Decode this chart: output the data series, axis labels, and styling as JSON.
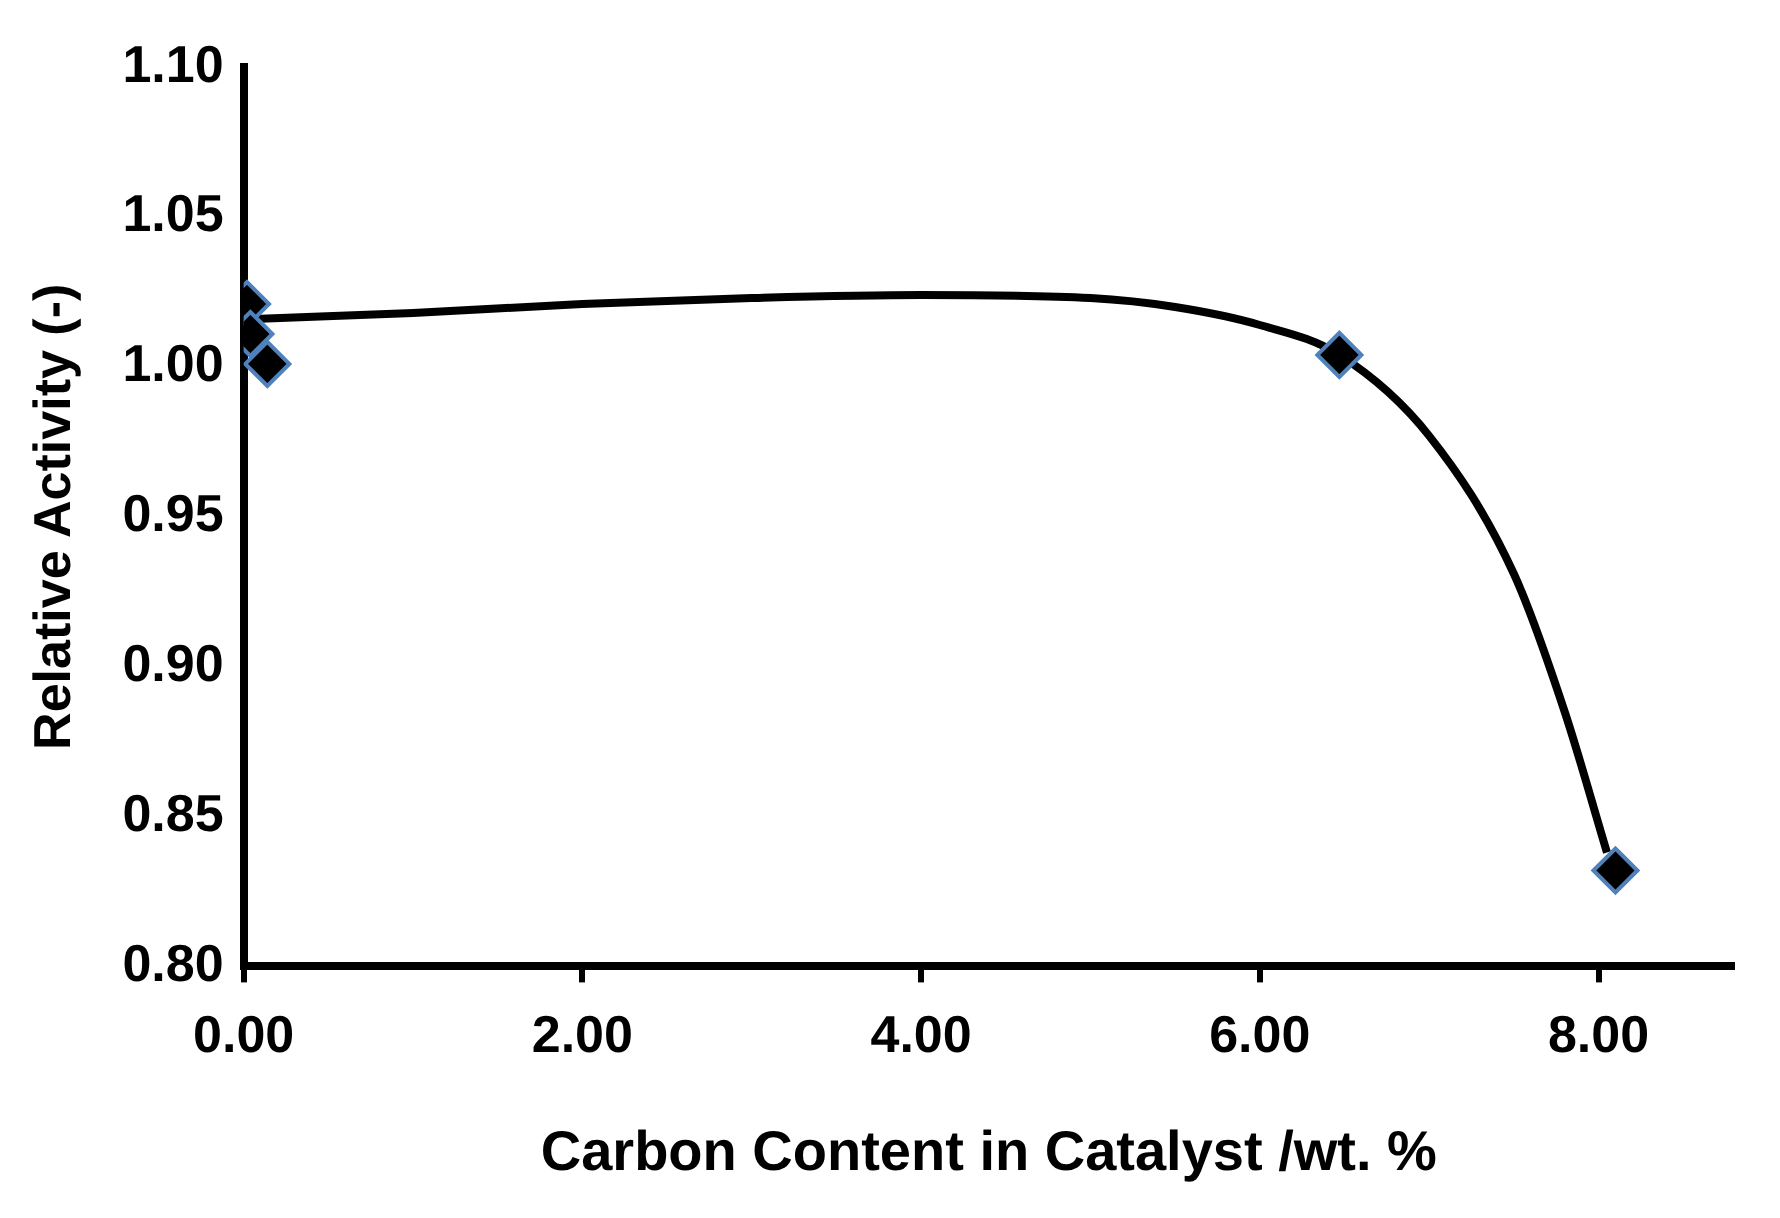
{
  "chart_data": {
    "type": "scatter",
    "xlabel": "Carbon Content in Catalyst /wt. %",
    "ylabel": "Relative Activity (-)",
    "xlim": [
      0,
      8.8
    ],
    "xticks": [
      {
        "value": 0,
        "label": "0.00"
      },
      {
        "value": 2,
        "label": "2.00"
      },
      {
        "value": 4,
        "label": "4.00"
      },
      {
        "value": 6,
        "label": "6.00"
      },
      {
        "value": 8,
        "label": "8.00"
      }
    ],
    "ylim": [
      0.8,
      1.1
    ],
    "yticks": [
      {
        "value": 0.8,
        "label": "0.80"
      },
      {
        "value": 0.85,
        "label": "0.85"
      },
      {
        "value": 0.9,
        "label": "0.90"
      },
      {
        "value": 0.95,
        "label": "0.95"
      },
      {
        "value": 1.0,
        "label": "1.00"
      },
      {
        "value": 1.05,
        "label": "1.05"
      },
      {
        "value": 1.1,
        "label": "1.10"
      }
    ],
    "grid": false,
    "legend": false,
    "marker": "diamond",
    "series": [
      {
        "color": "#000000",
        "x": [
          0.02,
          0.04,
          0.14,
          6.47,
          8.1
        ],
        "values": [
          1.021,
          1.011,
          1.001,
          1.004,
          0.832
        ]
      },
      {
        "type": "line",
        "color": "#000000",
        "marker": "none",
        "x": [
          0.05,
          1,
          2,
          3,
          4,
          5,
          5.5,
          6,
          6.47,
          7,
          7.5,
          7.8,
          8.05
        ],
        "values": [
          1.016,
          1.018,
          1.021,
          1.023,
          1.024,
          1.023,
          1.02,
          1.014,
          1.004,
          0.977,
          0.931,
          0.885,
          0.838
        ]
      }
    ]
  }
}
